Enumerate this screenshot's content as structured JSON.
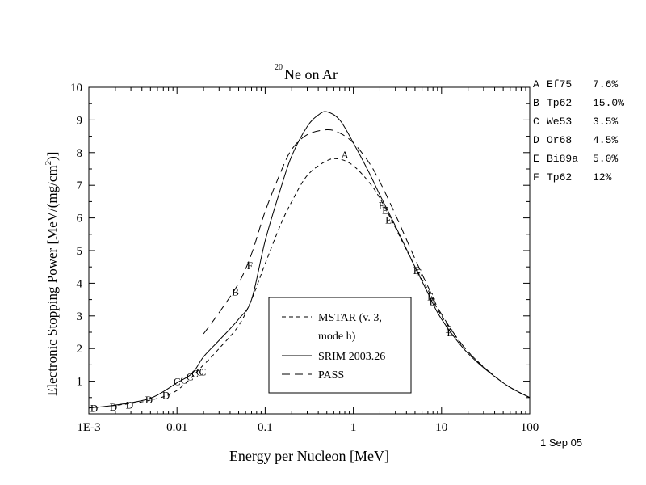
{
  "chart_data": {
    "type": "line",
    "title_superscript": "20",
    "title": "Ne on Ar",
    "xlabel": "Energy per Nucleon [MeV]",
    "ylabel_prefix": "Electronic Stopping Power [MeV/(mg/cm",
    "ylabel_sup": "2",
    "ylabel_suffix": ")]",
    "x_scale": "log",
    "xlim": [
      0.001,
      100
    ],
    "ylim": [
      0,
      10
    ],
    "x_ticks": [
      {
        "value": 0.001,
        "label": "1E-3"
      },
      {
        "value": 0.01,
        "label": "0.01"
      },
      {
        "value": 0.1,
        "label": "0.1"
      },
      {
        "value": 1,
        "label": "1"
      },
      {
        "value": 10,
        "label": "10"
      },
      {
        "value": 100,
        "label": "100"
      }
    ],
    "y_ticks": [
      1,
      2,
      3,
      4,
      5,
      6,
      7,
      8,
      9,
      10
    ],
    "date_label": "1 Sep 05",
    "legend": {
      "placement": "bottom-center",
      "entries": [
        {
          "label": "MSTAR (v. 3,",
          "label2": "mode h)",
          "style": "short-dash",
          "color": "#000000"
        },
        {
          "label": "SRIM 2003.26",
          "style": "solid",
          "color": "#000000"
        },
        {
          "label": "PASS",
          "style": "long-dash",
          "color": "#000000"
        }
      ]
    },
    "series": [
      {
        "name": "MSTAR (v. 3, mode h)",
        "style": "short-dash",
        "x": [
          0.001,
          0.002,
          0.005,
          0.01,
          0.02,
          0.03,
          0.05,
          0.07,
          0.1,
          0.15,
          0.2,
          0.3,
          0.5,
          0.7,
          1,
          1.5,
          2,
          3,
          5,
          7,
          10,
          20,
          50,
          100
        ],
        "y": [
          0.18,
          0.26,
          0.42,
          0.72,
          1.5,
          2.0,
          2.7,
          3.5,
          4.6,
          5.8,
          6.5,
          7.3,
          7.75,
          7.8,
          7.6,
          7.1,
          6.6,
          5.7,
          4.5,
          3.8,
          3.0,
          1.9,
          0.95,
          0.5
        ]
      },
      {
        "name": "SRIM 2003.26",
        "style": "solid",
        "x": [
          0.001,
          0.002,
          0.005,
          0.01,
          0.015,
          0.02,
          0.03,
          0.05,
          0.07,
          0.1,
          0.15,
          0.2,
          0.3,
          0.4,
          0.5,
          0.7,
          1,
          1.5,
          2,
          3,
          5,
          7,
          10,
          20,
          50,
          100
        ],
        "y": [
          0.18,
          0.27,
          0.48,
          0.95,
          1.25,
          1.75,
          2.25,
          2.9,
          3.5,
          5.3,
          6.9,
          7.9,
          8.8,
          9.15,
          9.25,
          9.0,
          8.3,
          7.4,
          6.7,
          5.75,
          4.5,
          3.7,
          2.9,
          1.85,
          0.95,
          0.5
        ]
      },
      {
        "name": "PASS",
        "style": "long-dash",
        "x": [
          0.02,
          0.03,
          0.05,
          0.07,
          0.1,
          0.15,
          0.2,
          0.3,
          0.5,
          0.7,
          1,
          1.5,
          2,
          3,
          5,
          7,
          10,
          20,
          50,
          100
        ],
        "y": [
          2.45,
          3.1,
          4.0,
          4.9,
          6.2,
          7.4,
          8.1,
          8.55,
          8.7,
          8.6,
          8.3,
          7.7,
          7.1,
          6.1,
          4.75,
          3.9,
          3.05,
          1.9,
          0.95,
          0.5
        ]
      }
    ],
    "experimental_points": [
      {
        "letter": "A",
        "x": 0.8,
        "y": 7.95
      },
      {
        "letter": "B",
        "x": 0.046,
        "y": 3.75
      },
      {
        "letter": "F",
        "x": 0.067,
        "y": 4.55
      },
      {
        "letter": "C",
        "x": 0.01,
        "y": 1.0
      },
      {
        "letter": "C",
        "x": 0.012,
        "y": 1.05
      },
      {
        "letter": "C",
        "x": 0.014,
        "y": 1.15
      },
      {
        "letter": "C",
        "x": 0.016,
        "y": 1.25
      },
      {
        "letter": "C",
        "x": 0.018,
        "y": 1.3
      },
      {
        "letter": "C",
        "x": 0.0195,
        "y": 1.3
      },
      {
        "letter": "D",
        "x": 0.00115,
        "y": 0.18
      },
      {
        "letter": "D",
        "x": 0.0019,
        "y": 0.22
      },
      {
        "letter": "D",
        "x": 0.0029,
        "y": 0.28
      },
      {
        "letter": "D",
        "x": 0.0048,
        "y": 0.45
      },
      {
        "letter": "D",
        "x": 0.0075,
        "y": 0.58
      },
      {
        "letter": "E",
        "x": 2.1,
        "y": 6.4
      },
      {
        "letter": "E",
        "x": 2.3,
        "y": 6.25
      },
      {
        "letter": "E",
        "x": 2.5,
        "y": 5.95
      },
      {
        "letter": "E",
        "x": 5.2,
        "y": 4.4
      },
      {
        "letter": "E",
        "x": 5.5,
        "y": 4.35
      },
      {
        "letter": "E",
        "x": 7.5,
        "y": 3.6
      },
      {
        "letter": "E",
        "x": 7.9,
        "y": 3.45
      },
      {
        "letter": "E",
        "x": 12.0,
        "y": 2.6
      },
      {
        "letter": "E",
        "x": 12.5,
        "y": 2.5
      }
    ],
    "data_sources": [
      {
        "letter": "A",
        "ref": "Ef75",
        "err": "7.6%"
      },
      {
        "letter": "B",
        "ref": "Tp62",
        "err": "15.0%"
      },
      {
        "letter": "C",
        "ref": "We53",
        "err": "3.5%"
      },
      {
        "letter": "D",
        "ref": "Or68",
        "err": "4.5%"
      },
      {
        "letter": "E",
        "ref": "Bi89a",
        "err": "5.0%"
      },
      {
        "letter": "F",
        "ref": "Tp62",
        "err": "12%"
      }
    ]
  }
}
